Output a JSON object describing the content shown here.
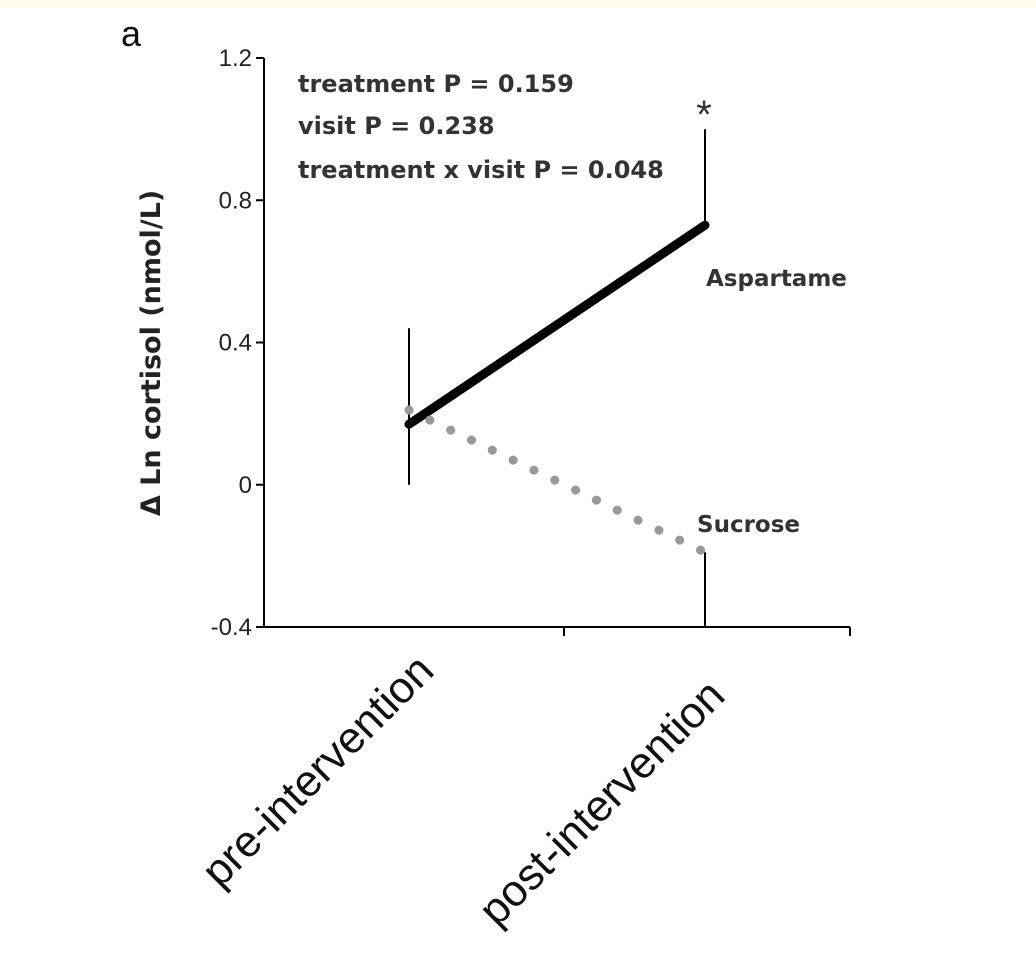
{
  "chart_data": {
    "type": "line",
    "panel_label": "a",
    "ylabel": "Δ Ln cortisol (nmol/L)",
    "xlabel": "",
    "ylim": [
      -0.4,
      1.2
    ],
    "yticks": [
      -0.4,
      0,
      0.4,
      0.8,
      1.2
    ],
    "ytick_labels": [
      "-0.4",
      "0",
      "0.4",
      "0.8",
      "1.2"
    ],
    "categories": [
      "pre-intervention",
      "post-intervention"
    ],
    "series": [
      {
        "name": "Aspartame",
        "style": "solid",
        "color": "#000000",
        "values": [
          0.17,
          0.73
        ],
        "error_up": [
          0.27,
          0.27
        ],
        "error_down": [
          0.17,
          0.0
        ]
      },
      {
        "name": "Sucrose",
        "style": "dotted",
        "color": "#999999",
        "values": [
          0.21,
          -0.19
        ],
        "error_up": [
          0.0,
          0.0
        ],
        "error_down": [
          0.0,
          0.21
        ]
      }
    ],
    "annotations": {
      "stats": [
        "treatment  P = 0.159",
        "visit   P = 0.238",
        "treatment x visit  P = 0.048"
      ],
      "significance": "*"
    }
  }
}
